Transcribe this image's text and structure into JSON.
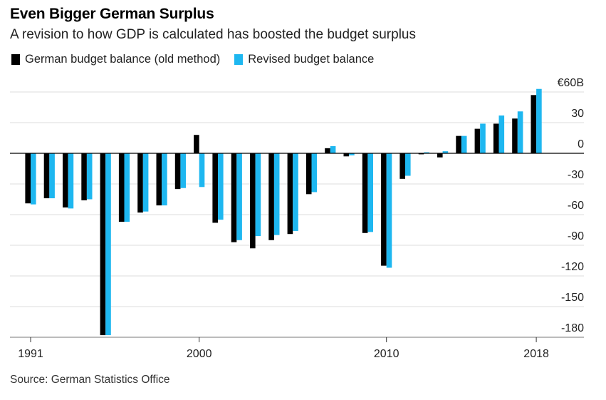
{
  "header": {
    "title": "Even Bigger German Surplus",
    "subtitle": "A revision to how GDP is calculated has boosted the budget surplus"
  },
  "source": "Source: German Statistics Office",
  "colors": {
    "old": "#000000",
    "revised": "#1eb7f0",
    "grid": "#dddddd",
    "zero": "#000000"
  },
  "chart_data": {
    "type": "bar",
    "title": "Even Bigger German Surplus",
    "xlabel": "",
    "ylabel": "",
    "ylim": [
      -180,
      60
    ],
    "y_unit_label": "€60B",
    "y_ticks": [
      60,
      30,
      0,
      -30,
      -60,
      -90,
      -120,
      -150,
      -180
    ],
    "y_tick_labels": [
      "€60B",
      "30",
      "0",
      "-30",
      "-60",
      "-90",
      "-120",
      "-150",
      "-180"
    ],
    "x_tick_labels": [
      "1991",
      "2000",
      "2010",
      "2018"
    ],
    "x_ticks": [
      1991,
      2000,
      2010,
      2018
    ],
    "categories": [
      1991,
      1992,
      1993,
      1994,
      1995,
      1996,
      1997,
      1998,
      1999,
      2000,
      2001,
      2002,
      2003,
      2004,
      2005,
      2006,
      2007,
      2008,
      2009,
      2010,
      2011,
      2012,
      2013,
      2014,
      2015,
      2016,
      2017,
      2018
    ],
    "series": [
      {
        "name": "German budget balance (old method)",
        "color": "#000000",
        "values": [
          -49,
          -44,
          -53,
          -46,
          -178,
          -67,
          -58,
          -51,
          -35,
          18,
          -68,
          -87,
          -93,
          -85,
          -79,
          -40,
          5,
          -3,
          -78,
          -110,
          -25,
          -1,
          -4,
          17,
          24,
          29,
          34,
          57
        ]
      },
      {
        "name": "Revised budget balance",
        "color": "#1eb7f0",
        "values": [
          -50,
          -44,
          -54,
          -45,
          -178,
          -67,
          -57,
          -51,
          -34,
          -33,
          -65,
          -85,
          -81,
          -80,
          -76,
          -38,
          7,
          -2,
          -77,
          -112,
          -22,
          1,
          2,
          17,
          29,
          37,
          41,
          63
        ]
      }
    ]
  }
}
